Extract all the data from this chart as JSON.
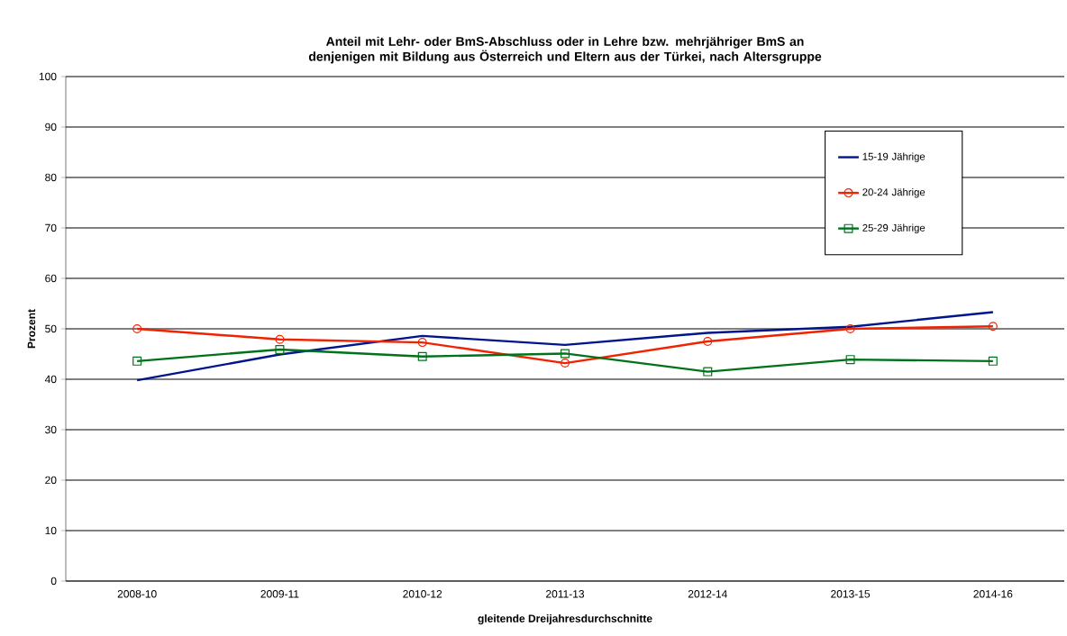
{
  "chart_data": {
    "type": "line",
    "title": "Anteil mit Lehr- oder BmS-Abschluss oder in Lehre bzw. mehrjähriger BmS an denjenigen mit Bildung aus Österreich und Eltern aus der Türkei, nach Altersgruppe",
    "xlabel": "gleitende Dreijahresdurchschnitte",
    "ylabel": "Prozent",
    "categories": [
      "2008-10",
      "2009-11",
      "2010-12",
      "2011-13",
      "2012-14",
      "2013-15",
      "2014-16"
    ],
    "series": [
      {
        "name": "15-19 Jährige",
        "color": "#00148c",
        "marker": "none",
        "values": [
          39.8,
          44.9,
          48.6,
          46.8,
          49.2,
          50.4,
          53.3
        ]
      },
      {
        "name": "20-24 Jährige",
        "color": "#f02200",
        "marker": "circle",
        "values": [
          50.0,
          47.9,
          47.3,
          43.2,
          47.5,
          50.0,
          50.5
        ]
      },
      {
        "name": "25-29 Jährige",
        "color": "#00731a",
        "marker": "square",
        "values": [
          43.6,
          45.9,
          44.5,
          45.1,
          41.5,
          43.9,
          43.6
        ]
      }
    ],
    "ylim": [
      0,
      100
    ],
    "yticks": [
      0,
      10,
      20,
      30,
      40,
      50,
      60,
      70,
      80,
      90,
      100
    ],
    "grid": "y",
    "legend": "top right",
    "line_style": "solid"
  }
}
